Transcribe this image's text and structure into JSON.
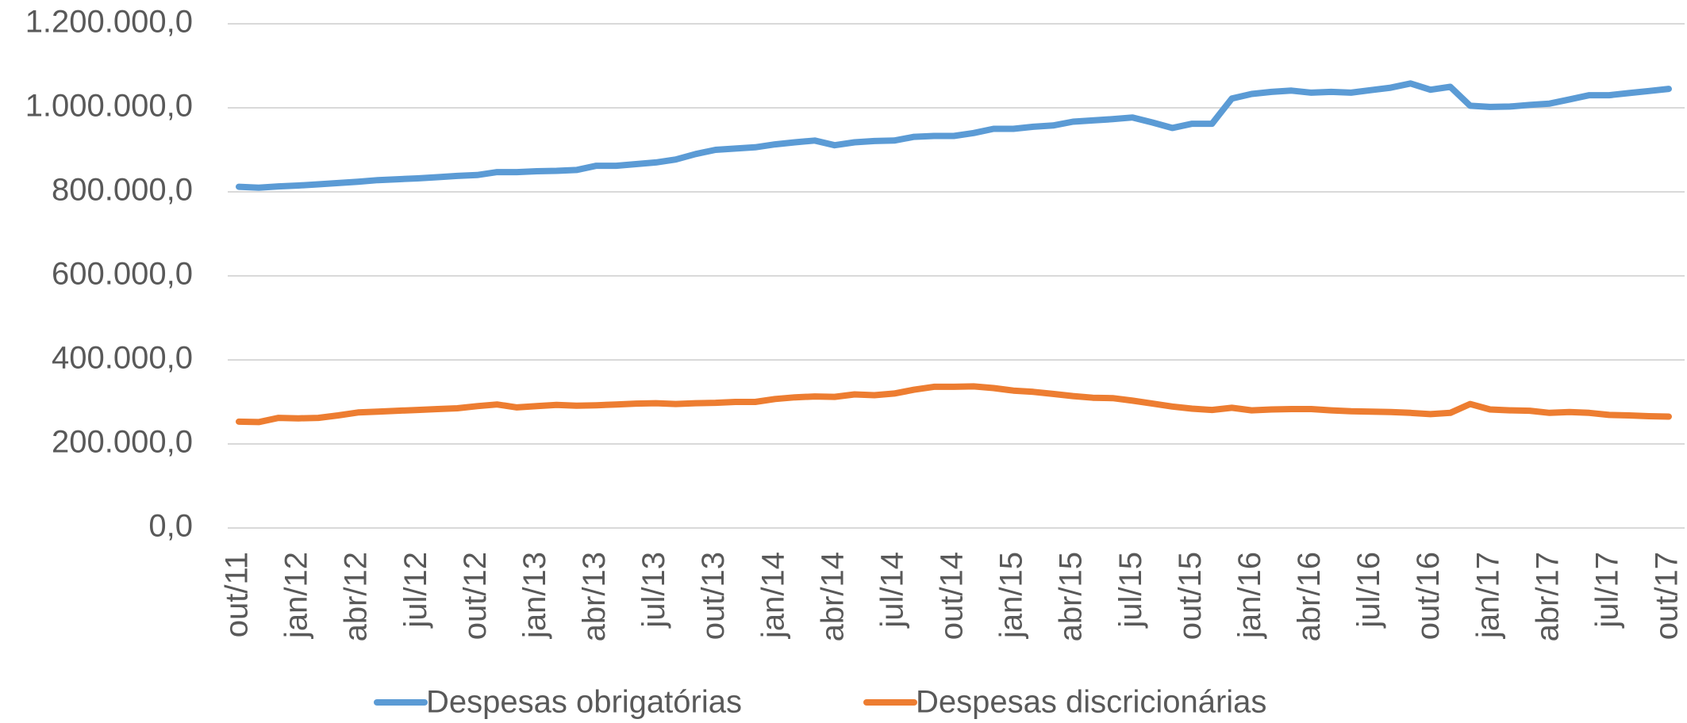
{
  "chart_data": {
    "type": "line",
    "categories": [
      "out/11",
      null,
      null,
      "jan/12",
      null,
      null,
      "abr/12",
      null,
      null,
      "jul/12",
      null,
      null,
      "out/12",
      null,
      null,
      "jan/13",
      null,
      null,
      "abr/13",
      null,
      null,
      "jul/13",
      null,
      null,
      "out/13",
      null,
      null,
      "jan/14",
      null,
      null,
      "abr/14",
      null,
      null,
      "jul/14",
      null,
      null,
      "out/14",
      null,
      null,
      "jan/15",
      null,
      null,
      "abr/15",
      null,
      null,
      "jul/15",
      null,
      null,
      "out/15",
      null,
      null,
      "jan/16",
      null,
      null,
      "abr/16",
      null,
      null,
      "jul/16",
      null,
      null,
      "out/16",
      null,
      null,
      "jan/17",
      null,
      null,
      "abr/17",
      null,
      null,
      "jul/17",
      null,
      null,
      "out/17"
    ],
    "series": [
      {
        "name": "Despesas obrigatórias",
        "color": "#5B9BD5",
        "values": [
          812000,
          810000,
          813000,
          815000,
          818000,
          821000,
          824000,
          828000,
          830000,
          832000,
          835000,
          838000,
          840000,
          847000,
          847000,
          849000,
          850000,
          852000,
          862000,
          862000,
          866000,
          870000,
          877000,
          890000,
          900000,
          903000,
          906000,
          913000,
          918000,
          922000,
          911000,
          918000,
          921000,
          922000,
          931000,
          933000,
          933000,
          940000,
          950000,
          950000,
          955000,
          958000,
          967000,
          970000,
          973000,
          977000,
          965000,
          952000,
          962000,
          962000,
          1022000,
          1033000,
          1038000,
          1041000,
          1036000,
          1038000,
          1036000,
          1042000,
          1048000,
          1058000,
          1043000,
          1050000,
          1005000,
          1002000,
          1003000,
          1007000,
          1010000,
          1020000,
          1030000,
          1030000,
          1035000,
          1040000,
          1045000
        ]
      },
      {
        "name": "Despesas discricionárias",
        "color": "#ED7D31",
        "values": [
          253000,
          252000,
          262000,
          261000,
          262000,
          268000,
          275000,
          277000,
          279000,
          281000,
          283000,
          285000,
          290000,
          294000,
          287000,
          290000,
          293000,
          291000,
          292000,
          294000,
          296000,
          297000,
          295000,
          297000,
          298000,
          300000,
          300000,
          307000,
          311000,
          313000,
          312000,
          318000,
          316000,
          320000,
          329000,
          336000,
          336000,
          337000,
          333000,
          327000,
          324000,
          319000,
          314000,
          310000,
          309000,
          303000,
          296000,
          289000,
          284000,
          281000,
          286000,
          280000,
          282000,
          283000,
          283000,
          280000,
          278000,
          277000,
          276000,
          274000,
          271000,
          274000,
          295000,
          282000,
          280000,
          279000,
          274000,
          276000,
          274000,
          269000,
          268000,
          266000,
          265000
        ]
      }
    ],
    "ylim": [
      0,
      1200000
    ],
    "yticks": [
      {
        "value": 0,
        "label": "0,0"
      },
      {
        "value": 200000,
        "label": "200.000,0"
      },
      {
        "value": 400000,
        "label": "400.000,0"
      },
      {
        "value": 600000,
        "label": "600.000,0"
      },
      {
        "value": 800000,
        "label": "800.000,0"
      },
      {
        "value": 1000000,
        "label": "1.000.000,0"
      },
      {
        "value": 1200000,
        "label": "1.200.000,0"
      }
    ],
    "grid": true,
    "legend": "bottom"
  }
}
